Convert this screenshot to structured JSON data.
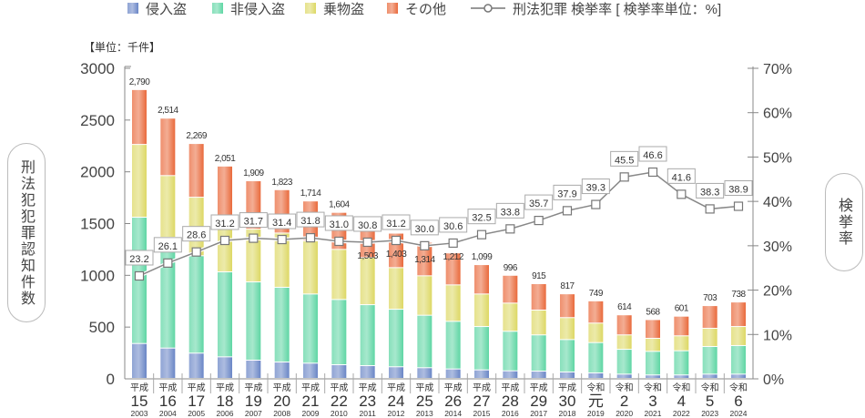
{
  "chart_data": {
    "type": "bar",
    "stacked": true,
    "unit_label": "【単位：千件】",
    "ylabel": "刑法犯犯罪認知件数",
    "y2label": "検挙率",
    "ylim": [
      0,
      3000
    ],
    "yticks": [
      "0",
      "500",
      "1000",
      "1500",
      "2000",
      "2500",
      "3000"
    ],
    "y2lim": [
      0,
      70
    ],
    "y2ticks": [
      "0%",
      "10%",
      "20%",
      "30%",
      "40%",
      "50%",
      "60%",
      "70%"
    ],
    "legend_position": "top",
    "categories": [
      {
        "era": "平成",
        "num": "15",
        "year": "2003"
      },
      {
        "era": "平成",
        "num": "16",
        "year": "2004"
      },
      {
        "era": "平成",
        "num": "17",
        "year": "2005"
      },
      {
        "era": "平成",
        "num": "18",
        "year": "2006"
      },
      {
        "era": "平成",
        "num": "19",
        "year": "2007"
      },
      {
        "era": "平成",
        "num": "20",
        "year": "2008"
      },
      {
        "era": "平成",
        "num": "21",
        "year": "2009"
      },
      {
        "era": "平成",
        "num": "22",
        "year": "2010"
      },
      {
        "era": "平成",
        "num": "23",
        "year": "2011"
      },
      {
        "era": "平成",
        "num": "24",
        "year": "2012"
      },
      {
        "era": "平成",
        "num": "25",
        "year": "2013"
      },
      {
        "era": "平成",
        "num": "26",
        "year": "2014"
      },
      {
        "era": "平成",
        "num": "27",
        "year": "2015"
      },
      {
        "era": "平成",
        "num": "28",
        "year": "2016"
      },
      {
        "era": "平成",
        "num": "29",
        "year": "2017"
      },
      {
        "era": "平成",
        "num": "30",
        "year": "2018"
      },
      {
        "era": "令和",
        "num": "元",
        "year": "2019"
      },
      {
        "era": "令和",
        "num": "2",
        "year": "2020"
      },
      {
        "era": "令和",
        "num": "3",
        "year": "2021"
      },
      {
        "era": "令和",
        "num": "4",
        "year": "2022"
      },
      {
        "era": "令和",
        "num": "5",
        "year": "2023"
      },
      {
        "era": "令和",
        "num": "6",
        "year": "2024"
      }
    ],
    "series": [
      {
        "name": "侵入盗",
        "color": "#6a86c6",
        "values": [
          337,
          293,
          244,
          208,
          176,
          158,
          147,
          132,
          123,
          112,
          103,
          91,
          82,
          73,
          70,
          62,
          53,
          41,
          33,
          33,
          41,
          41
        ]
      },
      {
        "name": "非侵入盗",
        "color": "#5fd6a4",
        "values": [
          1220,
          1070,
          941,
          821,
          756,
          722,
          668,
          630,
          589,
          556,
          507,
          460,
          419,
          382,
          350,
          313,
          293,
          240,
          228,
          234,
          267,
          276
        ]
      },
      {
        "name": "乗物盗",
        "color": "#ddd865",
        "values": [
          703,
          596,
          565,
          525,
          510,
          524,
          513,
          484,
          455,
          402,
          381,
          352,
          314,
          272,
          240,
          212,
          188,
          139,
          126,
          144,
          176,
          184
        ]
      },
      {
        "name": "その他",
        "color": "#e96a3c",
        "values": [
          530,
          555,
          519,
          497,
          467,
          419,
          386,
          358,
          336,
          333,
          323,
          309,
          284,
          269,
          255,
          230,
          215,
          194,
          181,
          190,
          219,
          237
        ]
      }
    ],
    "totals": [
      "2,790",
      "2,514",
      "2,269",
      "2,051",
      "1,909",
      "1,823",
      "1,714",
      "1,604",
      "1,503",
      "1,403",
      "1,314",
      "1,212",
      "1,099",
      "996",
      "915",
      "817",
      "749",
      "614",
      "568",
      "601",
      "703",
      "738"
    ],
    "total_values": [
      2790,
      2514,
      2269,
      2051,
      1909,
      1823,
      1714,
      1604,
      1503,
      1403,
      1314,
      1212,
      1099,
      996,
      915,
      817,
      749,
      614,
      568,
      601,
      703,
      738
    ],
    "line": {
      "name": "刑法犯罪 検挙率 [ 検挙率単位：%]",
      "values": [
        23.2,
        26.1,
        28.6,
        31.2,
        31.7,
        31.4,
        31.8,
        31.0,
        30.8,
        31.2,
        30.0,
        30.6,
        32.5,
        33.8,
        35.7,
        37.9,
        39.3,
        45.5,
        46.6,
        41.6,
        38.3,
        38.9
      ],
      "labels": [
        "23.2",
        "26.1",
        "28.6",
        "31.2",
        "31.7",
        "31.4",
        "31.8",
        "31.0",
        "30.8",
        "31.2",
        "30.0",
        "30.6",
        "32.5",
        "33.8",
        "35.7",
        "37.9",
        "39.3",
        "45.5",
        "46.6",
        "41.6",
        "38.3",
        "38.9"
      ]
    }
  }
}
